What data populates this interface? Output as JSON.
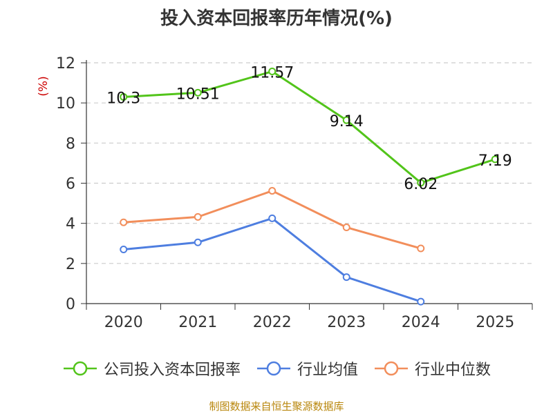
{
  "title": "投入资本回报率历年情况(%)",
  "source": "制图数据来自恒生聚源数据库",
  "colors": {
    "company": "#52c41a",
    "industry_avg": "#4e7ee0",
    "industry_median": "#f28e5b",
    "ylabel": "#cc0000"
  },
  "chart_data": {
    "type": "line",
    "title": "投入资本回报率历年情况(%)",
    "ylabel": "(%)",
    "xlabel": "",
    "categories": [
      "2020",
      "2021",
      "2022",
      "2023",
      "2024",
      "2025"
    ],
    "ylim": [
      0,
      12
    ],
    "yticks": [
      0,
      2,
      4,
      6,
      8,
      10,
      12
    ],
    "grid": true,
    "legend_position": "bottom",
    "series": [
      {
        "name": "公司投入资本回报率",
        "values": [
          10.3,
          10.51,
          11.57,
          9.14,
          6.02,
          7.19
        ],
        "labels": [
          "10.3",
          "10.51",
          "11.57",
          "9.14",
          "6.02",
          "7.19"
        ],
        "color_key": "company"
      },
      {
        "name": "行业均值",
        "values": [
          2.7,
          3.05,
          4.25,
          1.32,
          0.1,
          null
        ],
        "color_key": "industry_avg"
      },
      {
        "name": "行业中位数",
        "values": [
          4.05,
          4.32,
          5.62,
          3.8,
          2.75,
          null
        ],
        "color_key": "industry_median"
      }
    ]
  }
}
